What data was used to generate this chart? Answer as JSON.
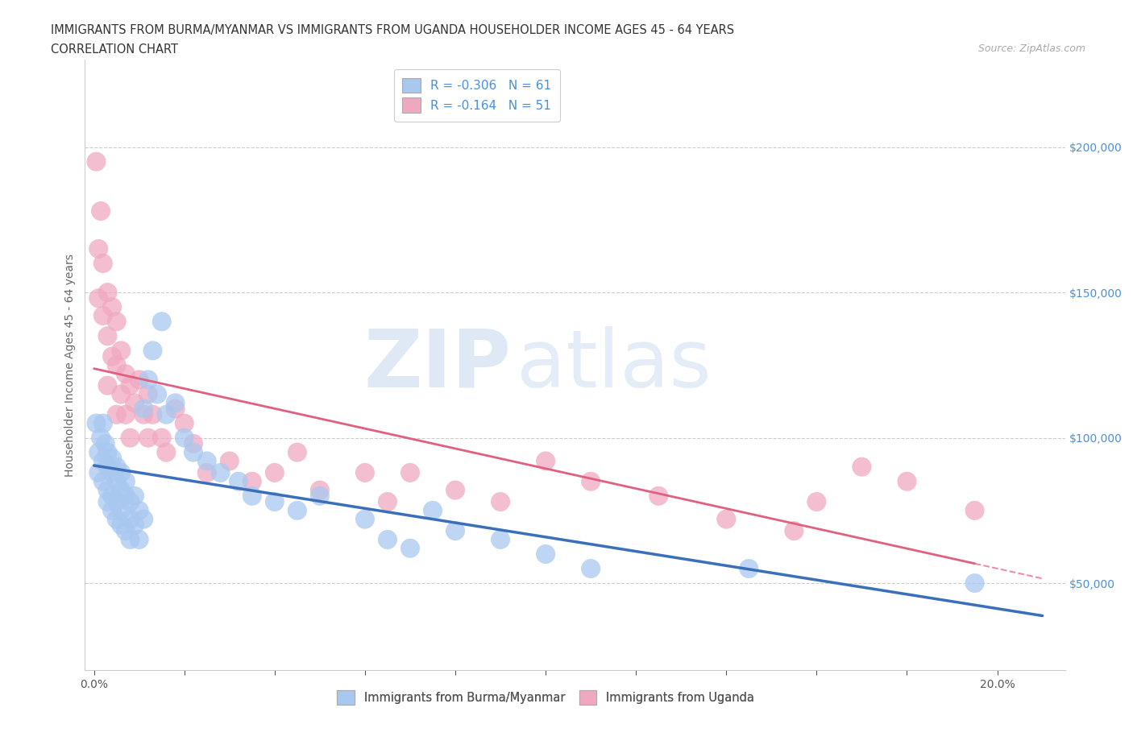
{
  "title_line1": "IMMIGRANTS FROM BURMA/MYANMAR VS IMMIGRANTS FROM UGANDA HOUSEHOLDER INCOME AGES 45 - 64 YEARS",
  "title_line2": "CORRELATION CHART",
  "source_text": "Source: ZipAtlas.com",
  "ylabel": "Householder Income Ages 45 - 64 years",
  "xlim": [
    -0.002,
    0.215
  ],
  "ylim": [
    20000,
    230000
  ],
  "xtick_pos": [
    0.0,
    0.02,
    0.04,
    0.06,
    0.08,
    0.1,
    0.12,
    0.14,
    0.16,
    0.18,
    0.2
  ],
  "xticklabels": [
    "0.0%",
    "",
    "",
    "",
    "",
    "",
    "",
    "",
    "",
    "",
    "20.0%"
  ],
  "ytick_values": [
    50000,
    100000,
    150000,
    200000
  ],
  "ytick_labels": [
    "$50,000",
    "$100,000",
    "$150,000",
    "$200,000"
  ],
  "legend_r_burma": "R = -0.306",
  "legend_n_burma": "N = 61",
  "legend_r_uganda": "R = -0.164",
  "legend_n_uganda": "N = 51",
  "watermark_zip": "ZIP",
  "watermark_atlas": "atlas",
  "color_burma": "#a8c8f0",
  "color_uganda": "#f0a8c0",
  "color_burma_line": "#3a6fba",
  "color_uganda_line": "#e06080",
  "burma_scatter_x": [
    0.0005,
    0.001,
    0.001,
    0.0015,
    0.002,
    0.002,
    0.002,
    0.0025,
    0.003,
    0.003,
    0.003,
    0.003,
    0.004,
    0.004,
    0.004,
    0.004,
    0.005,
    0.005,
    0.005,
    0.005,
    0.006,
    0.006,
    0.006,
    0.006,
    0.007,
    0.007,
    0.007,
    0.008,
    0.008,
    0.008,
    0.009,
    0.009,
    0.01,
    0.01,
    0.011,
    0.011,
    0.012,
    0.013,
    0.014,
    0.015,
    0.016,
    0.018,
    0.02,
    0.022,
    0.025,
    0.028,
    0.032,
    0.035,
    0.04,
    0.045,
    0.05,
    0.06,
    0.065,
    0.07,
    0.075,
    0.08,
    0.09,
    0.1,
    0.11,
    0.145,
    0.195
  ],
  "burma_scatter_y": [
    105000,
    95000,
    88000,
    100000,
    92000,
    105000,
    85000,
    98000,
    90000,
    82000,
    95000,
    78000,
    88000,
    75000,
    93000,
    80000,
    85000,
    72000,
    90000,
    78000,
    82000,
    70000,
    88000,
    75000,
    80000,
    68000,
    85000,
    72000,
    78000,
    65000,
    80000,
    70000,
    75000,
    65000,
    110000,
    72000,
    120000,
    130000,
    115000,
    140000,
    108000,
    112000,
    100000,
    95000,
    92000,
    88000,
    85000,
    80000,
    78000,
    75000,
    80000,
    72000,
    65000,
    62000,
    75000,
    68000,
    65000,
    60000,
    55000,
    55000,
    50000
  ],
  "uganda_scatter_x": [
    0.0005,
    0.001,
    0.001,
    0.0015,
    0.002,
    0.002,
    0.003,
    0.003,
    0.003,
    0.004,
    0.004,
    0.005,
    0.005,
    0.005,
    0.006,
    0.006,
    0.007,
    0.007,
    0.008,
    0.008,
    0.009,
    0.01,
    0.011,
    0.012,
    0.012,
    0.013,
    0.015,
    0.016,
    0.018,
    0.02,
    0.022,
    0.025,
    0.03,
    0.035,
    0.04,
    0.045,
    0.05,
    0.06,
    0.065,
    0.07,
    0.08,
    0.09,
    0.1,
    0.11,
    0.125,
    0.14,
    0.155,
    0.16,
    0.17,
    0.18,
    0.195
  ],
  "uganda_scatter_y": [
    195000,
    165000,
    148000,
    178000,
    160000,
    142000,
    150000,
    135000,
    118000,
    145000,
    128000,
    140000,
    125000,
    108000,
    130000,
    115000,
    122000,
    108000,
    118000,
    100000,
    112000,
    120000,
    108000,
    115000,
    100000,
    108000,
    100000,
    95000,
    110000,
    105000,
    98000,
    88000,
    92000,
    85000,
    88000,
    95000,
    82000,
    88000,
    78000,
    88000,
    82000,
    78000,
    92000,
    85000,
    80000,
    72000,
    68000,
    78000,
    90000,
    85000,
    75000
  ]
}
